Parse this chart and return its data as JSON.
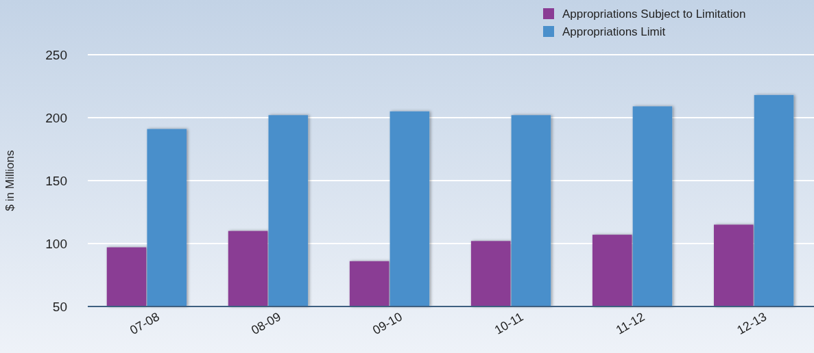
{
  "chart_data": {
    "type": "bar",
    "ylabel": "$ in Millions",
    "categories": [
      "07-08",
      "08-09",
      "09-10",
      "10-11",
      "11-12",
      "12-13"
    ],
    "series": [
      {
        "name": "Appropriations Subject to Limitation",
        "color": "#8a3c94",
        "values": [
          97,
          110,
          86,
          102,
          107,
          115
        ]
      },
      {
        "name": "Appropriations Limit",
        "color": "#4a8fcb",
        "values": [
          191,
          202,
          205,
          202,
          209,
          218
        ]
      }
    ],
    "ylim": [
      50,
      250
    ],
    "yticks": [
      50,
      100,
      150,
      200,
      250
    ],
    "grid": "y",
    "legend": "top right"
  }
}
